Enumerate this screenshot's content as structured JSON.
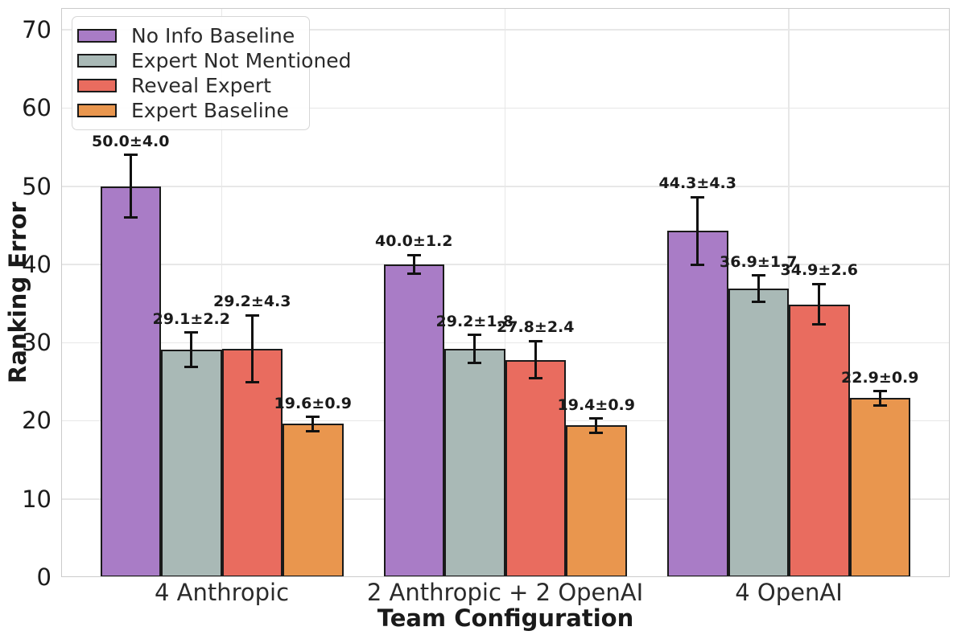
{
  "chart_data": {
    "type": "bar",
    "title": "",
    "xlabel": "Team Configuration",
    "ylabel": "Ranking Error",
    "categories": [
      "4 Anthropic",
      "2 Anthropic + 2 OpenAI",
      "4 OpenAI"
    ],
    "series": [
      {
        "name": "No Info Baseline",
        "color": "#a97cc6",
        "values": [
          50.0,
          40.0,
          44.3
        ],
        "errors": [
          4.0,
          1.2,
          4.3
        ],
        "bar_labels": [
          "50.0±4.0",
          "40.0±1.2",
          "44.3±4.3"
        ]
      },
      {
        "name": "Expert Not Mentioned",
        "color": "#a9b9b6",
        "values": [
          29.1,
          29.2,
          36.9
        ],
        "errors": [
          2.2,
          1.8,
          1.7
        ],
        "bar_labels": [
          "29.1±2.2",
          "29.2±1.8",
          "36.9±1.7"
        ]
      },
      {
        "name": "Reveal Expert",
        "color": "#e96c5f",
        "values": [
          29.2,
          27.8,
          34.9
        ],
        "errors": [
          4.3,
          2.4,
          2.6
        ],
        "bar_labels": [
          "29.2±4.3",
          "27.8±2.4",
          "34.9±2.6"
        ]
      },
      {
        "name": "Expert Baseline",
        "color": "#e9964e",
        "values": [
          19.6,
          19.4,
          22.9
        ],
        "errors": [
          0.9,
          0.9,
          0.9
        ],
        "bar_labels": [
          "19.6±0.9",
          "19.4±0.9",
          "22.9±0.9"
        ]
      }
    ],
    "yticks": [
      0,
      10,
      20,
      30,
      40,
      50,
      60,
      70
    ],
    "ytick_labels": [
      "0",
      "10",
      "20",
      "30",
      "40",
      "50",
      "60",
      "70"
    ],
    "ylim": [
      0,
      72.8
    ],
    "grid": true,
    "legend_position": "upper left",
    "colors": {
      "bar_edge": "#1a1a1a",
      "error_bar": "#111111",
      "grid": "#e7e7e7",
      "spine": "#cbcbcb",
      "background": "#ffffff"
    }
  }
}
